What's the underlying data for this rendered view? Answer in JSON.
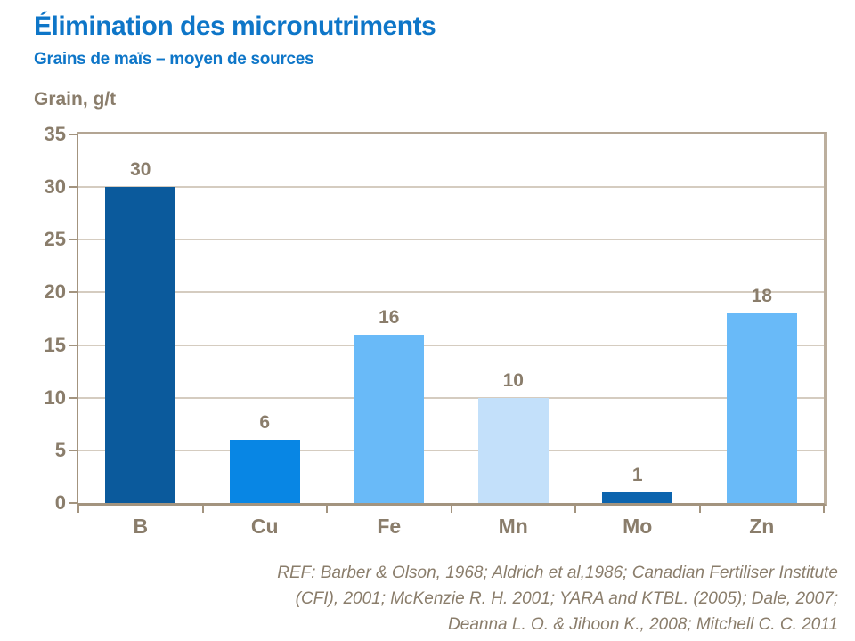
{
  "header": {
    "title": "Élimination des micronutriments",
    "subtitle": "Grains de maïs – moyen de sources"
  },
  "chart_data": {
    "type": "bar",
    "title": "Élimination des micronutriments",
    "subtitle": "Grains de maïs – moyen de sources",
    "ylabel": "Grain, g/t",
    "xlabel": "",
    "categories": [
      "B",
      "Cu",
      "Fe",
      "Mn",
      "Mo",
      "Zn"
    ],
    "values": [
      30,
      6,
      16,
      10,
      1,
      18
    ],
    "data_labels": [
      "30",
      "6",
      "16",
      "10",
      "1",
      "18"
    ],
    "bar_colors": [
      "#0b5a9c",
      "#0886e4",
      "#69baf8",
      "#c3e0fa",
      "#0c64ae",
      "#69baf8"
    ],
    "ylim": [
      0,
      35
    ],
    "yticks": [
      0,
      5,
      10,
      15,
      20,
      25,
      30,
      35
    ],
    "grid": true,
    "legend": false
  },
  "footer": {
    "ref_lines": [
      "REF: Barber & Olson, 1968; Aldrich et al,1986; Canadian Fertiliser Institute",
      "(CFI),  2001; McKenzie R. H. 2001; YARA and KTBL. (2005); Dale, 2007;",
      "Deanna L. O. & Jihoon K.,  2008; Mitchell C. C. 2011"
    ]
  },
  "colors": {
    "accent_blue": "#0e76c8",
    "text_taupe": "#8a7d6b",
    "axis_line": "#a3947f",
    "gridline": "#d5ccc0",
    "background": "#ffffff"
  }
}
